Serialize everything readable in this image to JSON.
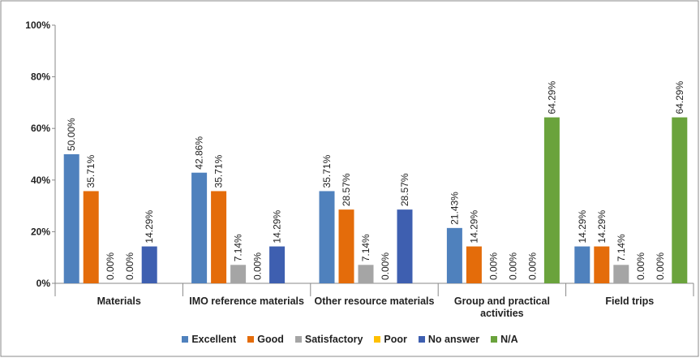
{
  "chart_data": {
    "type": "bar",
    "categories": [
      "Materials",
      "IMO reference materials",
      "Other resource materials",
      "Group and practical activities",
      "Field trips"
    ],
    "series": [
      {
        "name": "Excellent",
        "color": "#4f81bd",
        "values": [
          50.0,
          42.86,
          35.71,
          21.43,
          14.29
        ],
        "value_labels": [
          "50.00%",
          "42.86%",
          "35.71%",
          "21.43%",
          "14.29%"
        ]
      },
      {
        "name": "Good",
        "color": "#e46c0a",
        "values": [
          35.71,
          35.71,
          28.57,
          14.29,
          14.29
        ],
        "value_labels": [
          "35.71%",
          "35.71%",
          "28.57%",
          "14.29%",
          "14.29%"
        ]
      },
      {
        "name": "Satisfactory",
        "color": "#a5a5a5",
        "values": [
          0.0,
          7.14,
          7.14,
          0.0,
          7.14
        ],
        "value_labels": [
          "0.00%",
          "7.14%",
          "7.14%",
          "0.00%",
          "7.14%"
        ]
      },
      {
        "name": "Poor",
        "color": "#ffc000",
        "values": [
          0.0,
          0.0,
          0.0,
          0.0,
          0.0
        ],
        "value_labels": [
          "0.00%",
          "0.00%",
          "0.00%",
          "0.00%",
          "0.00%"
        ]
      },
      {
        "name": "No answer",
        "color": "#3e5fb0",
        "values": [
          14.29,
          14.29,
          28.57,
          0.0,
          0.0
        ],
        "value_labels": [
          "14.29%",
          "14.29%",
          "28.57%",
          "0.00%",
          "0.00%"
        ]
      },
      {
        "name": "N/A",
        "color": "#6aa33c",
        "values": [
          null,
          null,
          null,
          64.29,
          64.29
        ],
        "value_labels": [
          null,
          null,
          null,
          "64.29%",
          "64.29%"
        ]
      }
    ],
    "ylim": [
      0,
      100
    ],
    "yticks": [
      {
        "value": 0,
        "label": "0%"
      },
      {
        "value": 20,
        "label": "20%"
      },
      {
        "value": 40,
        "label": "40%"
      },
      {
        "value": 60,
        "label": "60%"
      },
      {
        "value": 80,
        "label": "80%"
      },
      {
        "value": 100,
        "label": "100%"
      }
    ],
    "legend": "bottom",
    "grid": false
  }
}
